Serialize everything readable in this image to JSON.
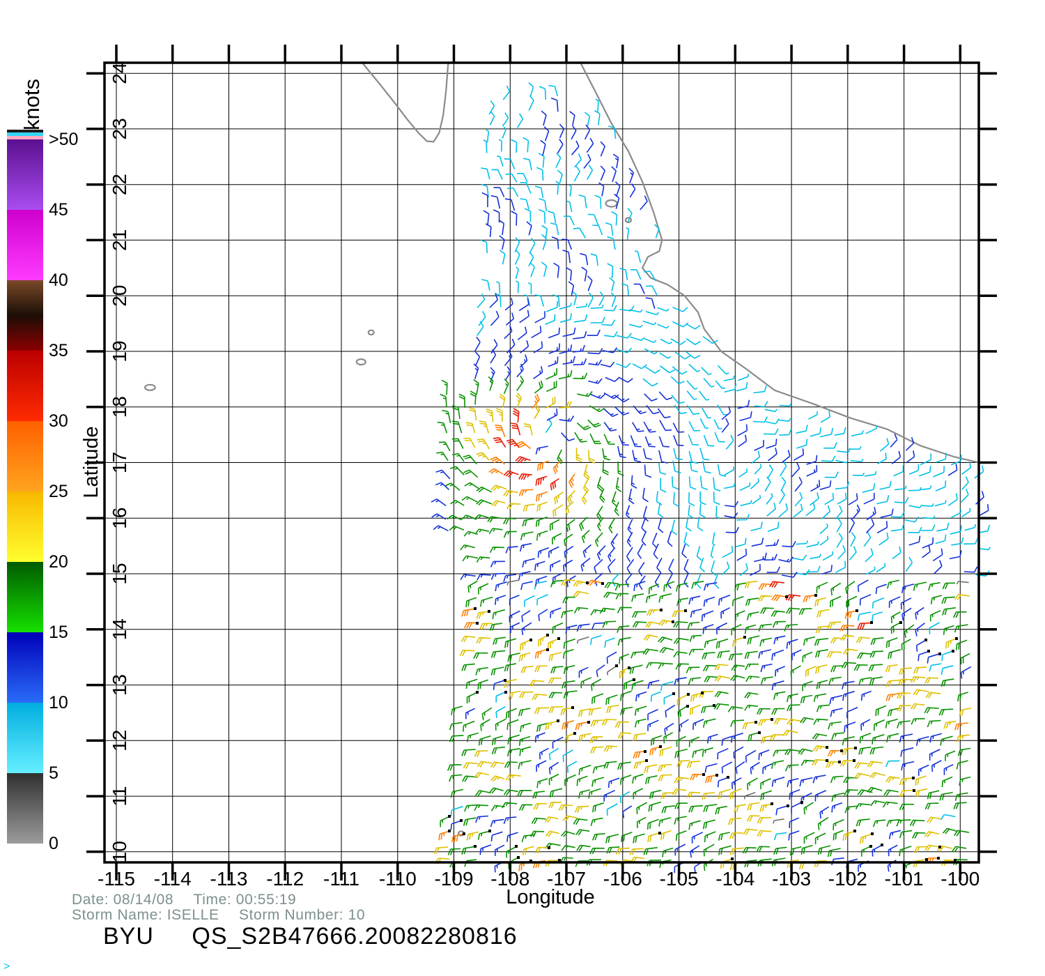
{
  "figure": {
    "platform": "BYU",
    "file_id": "QS_S2B47666.20082280816",
    "date_label": "Date:",
    "date": "08/14/08",
    "time_label": "Time:",
    "time": "00:55:19",
    "storm_label": "Storm Name:",
    "storm_name": "ISELLE",
    "storm_no_label": "Storm Number:",
    "storm_number": "10",
    "corner_glyph": ">"
  },
  "colorbar": {
    "title": "knots",
    "min": 0,
    "max": 50,
    "bins": [
      {
        "range": [
          0,
          5
        ],
        "barb_color": "#6e6e6e",
        "gradient": [
          "#9c9c9c",
          "#303030"
        ]
      },
      {
        "range": [
          5,
          10
        ],
        "barb_color": "#00bfe8",
        "gradient": [
          "#66efff",
          "#00aee0"
        ]
      },
      {
        "range": [
          10,
          15
        ],
        "barb_color": "#1430d8",
        "gradient": [
          "#2a6cf8",
          "#0000bb"
        ]
      },
      {
        "range": [
          15,
          20
        ],
        "barb_color": "#089000",
        "gradient": [
          "#16e000",
          "#005a00"
        ]
      },
      {
        "range": [
          20,
          25
        ],
        "barb_color": "#ddc000",
        "gradient": [
          "#ffff2e",
          "#f8b800"
        ]
      },
      {
        "range": [
          25,
          30
        ],
        "barb_color": "#ff7f00",
        "gradient": [
          "#ffa41e",
          "#ff5f00"
        ]
      },
      {
        "range": [
          30,
          35
        ],
        "barb_color": "#e81800",
        "gradient": [
          "#ff2a00",
          "#bc0000"
        ]
      },
      {
        "range": [
          35,
          40
        ],
        "barb_color": "#6b3d1e",
        "gradient": [
          "#8c0000",
          "#1c0e06",
          "#7a4a28"
        ]
      },
      {
        "range": [
          40,
          45
        ],
        "barb_color": "#f400f4",
        "gradient": [
          "#ff3cff",
          "#cf00cf"
        ]
      },
      {
        "range": [
          45,
          50
        ],
        "barb_color": "#8a2be2",
        "gradient": [
          "#a94df0",
          "#5c1090"
        ]
      }
    ],
    "boundary_labels": [
      {
        "value": 0,
        "label": "0"
      },
      {
        "value": 5,
        "label": "5"
      },
      {
        "value": 10,
        "label": "10"
      },
      {
        "value": 15,
        "label": "15"
      },
      {
        "value": 20,
        "label": "20"
      },
      {
        "value": 25,
        "label": "25"
      },
      {
        "value": 30,
        "label": "30"
      },
      {
        "value": 35,
        "label": "35"
      },
      {
        "value": 40,
        "label": "40"
      },
      {
        "value": 45,
        "label": "45"
      },
      {
        "value": 50,
        "label": ">50"
      }
    ],
    "top_stripes": [
      {
        "color": "#ffa8c0",
        "height": 5
      },
      {
        "color": "#35d5f5",
        "height": 5
      },
      {
        "color": "#1a1a1a",
        "height": 4
      }
    ]
  },
  "chart_data": {
    "type": "wind_barb_map",
    "title": "BYU QS_S2B47666.20082280816",
    "subtitle": "QuikSCAT scatterometer ocean surface winds, Tropical Storm ISELLE (storm 10)",
    "units": "knots",
    "grid": true,
    "axes": {
      "x": {
        "title": "Longitude",
        "range": [
          -115.21,
          -99.67
        ],
        "ticks": [
          -115,
          -114,
          -113,
          -112,
          -111,
          -110,
          -109,
          -108,
          -107,
          -106,
          -105,
          -104,
          -103,
          -102,
          -101,
          -100
        ]
      },
      "y": {
        "title": "Latitude",
        "range": [
          9.81,
          24.19
        ],
        "ticks": [
          10,
          11,
          12,
          13,
          14,
          15,
          16,
          17,
          18,
          19,
          20,
          21,
          22,
          23,
          24
        ]
      }
    },
    "wind_field": {
      "storm_center": {
        "lon": -107.3,
        "lat": 17.45
      },
      "storm_max_wind_kt": 30,
      "storm_rmax_deg": 0.6,
      "grid_spacing_deg": 0.25,
      "seed": 1234,
      "swaths": [
        {
          "name": "north",
          "lon": [
            -108.4,
            -105.3
          ],
          "lat": [
            19.8,
            23.6
          ],
          "regime": "north",
          "dropout": 0.18
        },
        {
          "name": "storm",
          "lon": [
            -109.35,
            -104.2
          ],
          "lat": [
            15.0,
            19.8
          ],
          "regime": "storm",
          "dropout": 0.08
        },
        {
          "name": "east",
          "lon": [
            -104.2,
            -99.7
          ],
          "lat": [
            15.0,
            18.7
          ],
          "regime": "east",
          "dropout": 0.16
        },
        {
          "name": "south",
          "lon": [
            -109.35,
            -99.7
          ],
          "lat": [
            9.85,
            15.0
          ],
          "regime": "south",
          "dropout": 0.08
        }
      ]
    },
    "coastline": {
      "mainland": [
        [
          -106.75,
          24.19
        ],
        [
          -106.5,
          23.7
        ],
        [
          -106.2,
          23.1
        ],
        [
          -105.9,
          22.6
        ],
        [
          -105.65,
          22.05
        ],
        [
          -105.45,
          21.5
        ],
        [
          -105.3,
          21.0
        ],
        [
          -105.35,
          20.8
        ],
        [
          -105.55,
          20.7
        ],
        [
          -105.65,
          20.5
        ],
        [
          -105.5,
          20.32
        ],
        [
          -105.2,
          20.2
        ],
        [
          -104.9,
          20.0
        ],
        [
          -104.66,
          19.7
        ],
        [
          -104.55,
          19.4
        ],
        [
          -104.25,
          19.0
        ],
        [
          -103.8,
          18.68
        ],
        [
          -103.3,
          18.3
        ],
        [
          -102.6,
          18.05
        ],
        [
          -101.95,
          17.8
        ],
        [
          -101.3,
          17.6
        ],
        [
          -100.7,
          17.3
        ],
        [
          -100.1,
          17.1
        ],
        [
          -99.67,
          17.0
        ]
      ],
      "baja": [
        [
          -110.63,
          24.19
        ],
        [
          -110.32,
          23.81
        ],
        [
          -110.03,
          23.44
        ],
        [
          -109.82,
          23.16
        ],
        [
          -109.63,
          22.93
        ],
        [
          -109.48,
          22.78
        ],
        [
          -109.36,
          22.77
        ],
        [
          -109.26,
          22.93
        ],
        [
          -109.19,
          23.25
        ],
        [
          -109.14,
          23.68
        ],
        [
          -109.1,
          24.19
        ]
      ],
      "islands": [
        [
          -106.2,
          21.66,
          0.1,
          0.06
        ],
        [
          -105.9,
          21.36,
          0.05,
          0.04
        ],
        [
          -110.47,
          19.34,
          0.05,
          0.04
        ],
        [
          -110.65,
          18.81,
          0.08,
          0.05
        ],
        [
          -114.4,
          18.35,
          0.09,
          0.05
        ],
        [
          -108.87,
          10.33,
          0.05,
          0.04
        ]
      ],
      "mask": [
        [
          -106.75,
          24.3
        ],
        [
          -106.5,
          23.7
        ],
        [
          -105.9,
          22.6
        ],
        [
          -105.45,
          21.5
        ],
        [
          -105.2,
          20.6
        ],
        [
          -104.9,
          20.0
        ],
        [
          -104.5,
          19.35
        ],
        [
          -104.2,
          18.95
        ],
        [
          -103.8,
          18.65
        ],
        [
          -103.3,
          18.28
        ],
        [
          -102.6,
          18.0
        ],
        [
          -101.9,
          17.78
        ],
        [
          -101.3,
          17.58
        ],
        [
          -100.7,
          17.28
        ],
        [
          -99.6,
          16.98
        ]
      ]
    }
  }
}
